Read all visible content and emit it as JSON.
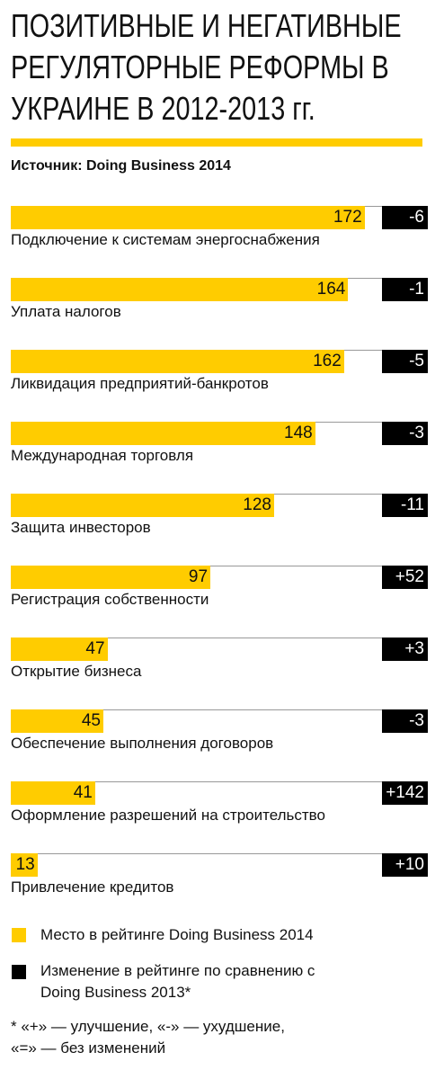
{
  "chart_data": {
    "type": "bar",
    "title": "ПОЗИТИВНЫЕ И НЕГАТИВНЫЕ РЕГУЛЯТОРНЫЕ РЕФОРМЫ В УКРАИНЕ В 2012-2013 гг.",
    "subtitle": "Источник: Doing Business 2014",
    "categories": [
      "Подключение к системам энергоснабжения",
      "Уплата налогов",
      "Ликвидация предприятий-банкротов",
      "Международная торговля",
      "Защита инвесторов",
      "Регистрация собственности",
      "Открытие бизнеса",
      "Обеспечение выполнения договоров",
      "Оформление разрешений на строительство",
      "Привлечение кредитов"
    ],
    "series": [
      {
        "name": "Место в рейтинге Doing Business 2014",
        "color": "#ffcc00",
        "values": [
          172,
          164,
          162,
          148,
          128,
          97,
          47,
          45,
          41,
          13
        ]
      },
      {
        "name": "Изменение в рейтинге по сравнению с Doing Business 2013*",
        "color": "#000000",
        "values": [
          -6,
          -1,
          -5,
          -3,
          -11,
          52,
          3,
          -3,
          142,
          10
        ],
        "value_labels": [
          "-6",
          "-1",
          "-5",
          "-3",
          "-11",
          "+52",
          "+3",
          "-3",
          "+142",
          "+10"
        ]
      }
    ],
    "xlim": [
      0,
      180
    ],
    "annotation": "* «+» — улучшение, «-» — ухудшение, «=» — без изменений"
  }
}
